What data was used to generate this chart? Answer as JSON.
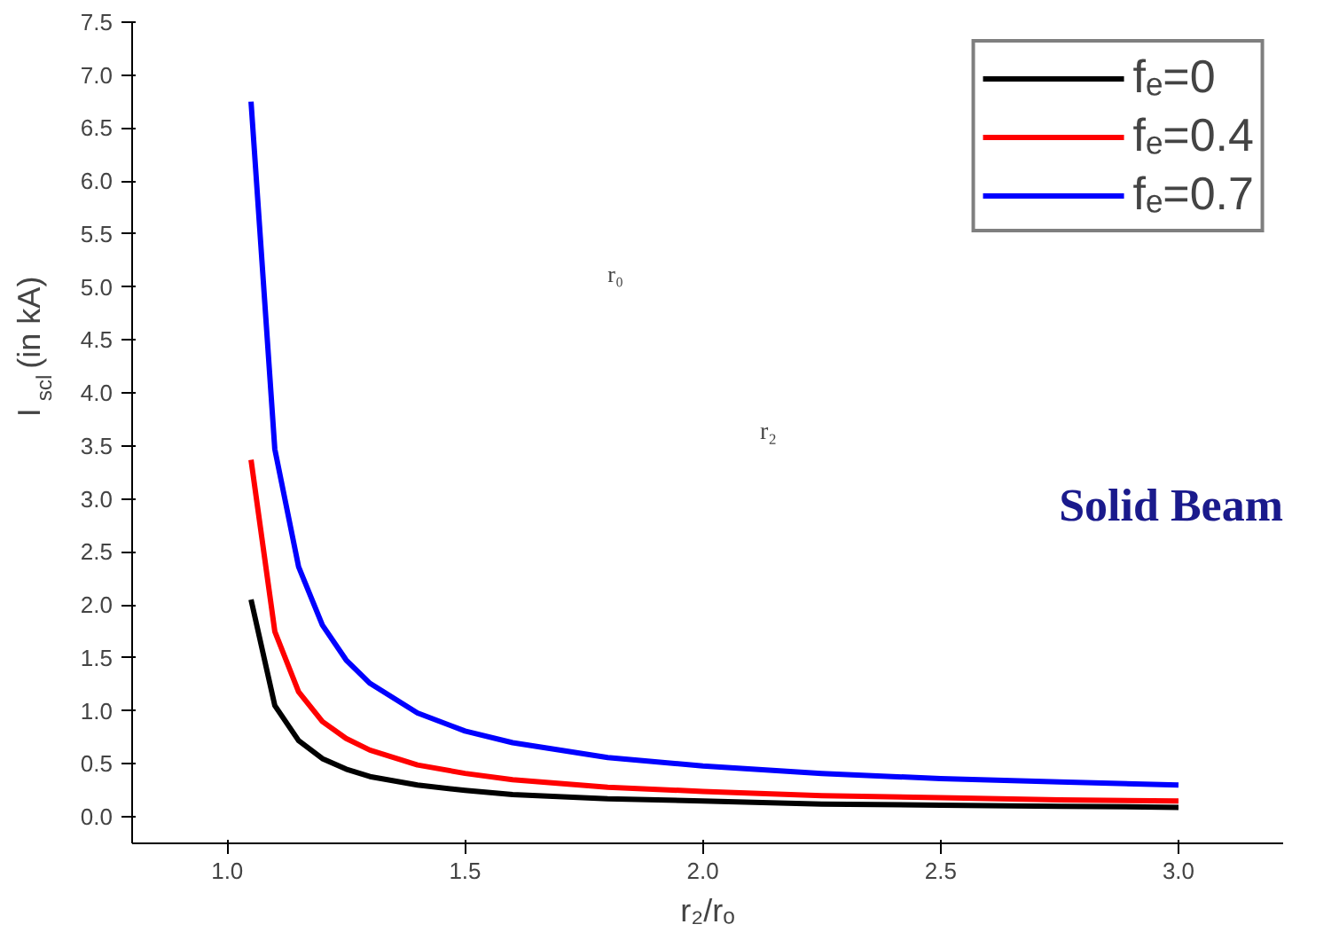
{
  "chart_data": {
    "type": "line",
    "xlabel": "r₂/rₒ",
    "ylabel": "I$_{scl}$ (in kA)",
    "xlim": [
      0.8,
      3.22
    ],
    "ylim": [
      -0.25,
      7.5
    ],
    "xticks": [
      {
        "value": 1.0,
        "label": "1.0"
      },
      {
        "value": 1.5,
        "label": "1.5"
      },
      {
        "value": 2.0,
        "label": "2.0"
      },
      {
        "value": 2.5,
        "label": "2.5"
      },
      {
        "value": 3.0,
        "label": "3.0"
      }
    ],
    "yticks": [
      {
        "value": 0,
        "label": "0.0"
      },
      {
        "value": 0.5,
        "label": "0.5"
      },
      {
        "value": 1,
        "label": "1.0"
      },
      {
        "value": 1.5,
        "label": "1.5"
      },
      {
        "value": 2,
        "label": "2.0"
      },
      {
        "value": 2.5,
        "label": "2.5"
      },
      {
        "value": 3,
        "label": "3.0"
      },
      {
        "value": 3.5,
        "label": "3.5"
      },
      {
        "value": 4,
        "label": "4.0"
      },
      {
        "value": 4.5,
        "label": "4.5"
      },
      {
        "value": 5,
        "label": "5.0"
      },
      {
        "value": 5.5,
        "label": "5.5"
      },
      {
        "value": 6,
        "label": "6.0"
      },
      {
        "value": 6.5,
        "label": "6.5"
      },
      {
        "value": 7,
        "label": "7.0"
      },
      {
        "value": 7.5,
        "label": "7.5"
      }
    ],
    "x": [
      1.05,
      1.1,
      1.15,
      1.2,
      1.25,
      1.3,
      1.4,
      1.5,
      1.6,
      1.8,
      2.0,
      2.25,
      2.5,
      2.75,
      3.0
    ],
    "series": [
      {
        "name": "fₑ=0",
        "color": "#000000",
        "values": [
          2.05,
          1.05,
          0.72,
          0.55,
          0.45,
          0.38,
          0.3,
          0.25,
          0.21,
          0.17,
          0.15,
          0.12,
          0.11,
          0.1,
          0.09
        ]
      },
      {
        "name": "fₑ=0.4",
        "color": "#ff0000",
        "values": [
          3.37,
          1.75,
          1.18,
          0.9,
          0.74,
          0.63,
          0.49,
          0.41,
          0.35,
          0.28,
          0.24,
          0.2,
          0.18,
          0.16,
          0.15
        ]
      },
      {
        "name": "fₑ=0.7",
        "color": "#0000ff",
        "values": [
          6.75,
          3.47,
          2.36,
          1.81,
          1.48,
          1.26,
          0.98,
          0.81,
          0.7,
          0.56,
          0.48,
          0.41,
          0.36,
          0.33,
          0.3
        ]
      }
    ],
    "legend": "top right",
    "grid": false,
    "marker": "none",
    "line_style": "solid",
    "annotations": [
      "Solid Beam",
      "r₀",
      "r₂"
    ]
  }
}
